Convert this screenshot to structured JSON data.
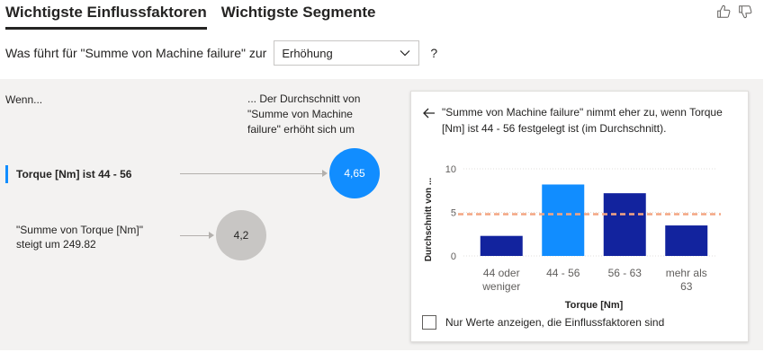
{
  "tabs": [
    {
      "label": "Wichtigste Einflussfaktoren",
      "active": true
    },
    {
      "label": "Wichtigste Segmente",
      "active": false
    }
  ],
  "question": {
    "text": "Was führt für \"Summe von Machine failure\" zur",
    "dropdown_value": "Erhöhung",
    "suffix": "?"
  },
  "left": {
    "if_label": "Wenn...",
    "result_header": "... Der Durchschnitt von \"Summe von Machine failure\" erhöht sich um",
    "influencers": [
      {
        "label": "Torque [Nm] ist 44 - 56",
        "value": "4,65",
        "selected": true
      },
      {
        "label": "\"Summe von Torque [Nm]\" steigt um 249.82",
        "value": "4,2",
        "selected": false
      }
    ]
  },
  "detail": {
    "description": "\"Summe von Machine failure\" nimmt eher zu, wenn Torque [Nm] ist 44 - 56 festgelegt ist (im Durchschnitt).",
    "checkbox_label": "Nur Werte anzeigen, die Einflussfaktoren sind"
  },
  "colors": {
    "accent": "#118dff",
    "bar_dark": "#12239e",
    "average_line": "#f4a582",
    "bubble_grey": "#c8c6c4"
  },
  "chart_data": {
    "type": "bar",
    "categories": [
      "44 oder weniger",
      "44 - 56",
      "56 - 63",
      "mehr als 63"
    ],
    "values": [
      2.3,
      8.2,
      7.2,
      3.5
    ],
    "highlight_index": 1,
    "average": 4.8,
    "xlabel": "Torque [Nm]",
    "ylabel": "Durchschnitt von ...",
    "yticks": [
      0,
      5,
      10
    ],
    "ylim": [
      0,
      10
    ]
  }
}
